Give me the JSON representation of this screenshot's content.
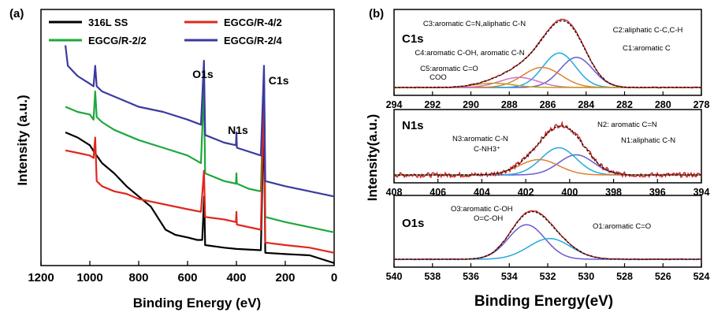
{
  "panel_a_label": "(a)",
  "panel_b_label": "(b)",
  "chart_data": [
    {
      "type": "line",
      "panel": "(a)",
      "xlabel": "Binding Energy (eV)",
      "ylabel": "Intensity (a.u.)",
      "xlim": [
        1200,
        0
      ],
      "x_ticks": [
        "1200",
        "1000",
        "800",
        "600",
        "400",
        "200",
        "0"
      ],
      "peak_labels": [
        {
          "text": "O1s",
          "x": 531
        },
        {
          "text": "N1s",
          "x": 400
        },
        {
          "text": "C1s",
          "x": 285
        }
      ],
      "series": [
        {
          "name": "316L SS",
          "color": "#000000",
          "legend": "top-left",
          "points": [
            [
              1100,
              0.52
            ],
            [
              1050,
              0.5
            ],
            [
              1000,
              0.47
            ],
            [
              980,
              0.44
            ],
            [
              950,
              0.4
            ],
            [
              900,
              0.36
            ],
            [
              850,
              0.31
            ],
            [
              800,
              0.27
            ],
            [
              750,
              0.23
            ],
            [
              710,
              0.17
            ],
            [
              690,
              0.14
            ],
            [
              650,
              0.12
            ],
            [
              600,
              0.11
            ],
            [
              560,
              0.1
            ],
            [
              540,
              0.1
            ],
            [
              532,
              0.27
            ],
            [
              528,
              0.08
            ],
            [
              450,
              0.07
            ],
            [
              400,
              0.065
            ],
            [
              300,
              0.06
            ],
            [
              287,
              0.6
            ],
            [
              282,
              0.05
            ],
            [
              200,
              0.045
            ],
            [
              100,
              0.04
            ],
            [
              0,
              0.01
            ]
          ]
        },
        {
          "name": "EGCG/R-2/2",
          "color": "#1ea83c",
          "legend": "bottom-left",
          "points": [
            [
              1100,
              0.62
            ],
            [
              1050,
              0.6
            ],
            [
              1000,
              0.59
            ],
            [
              985,
              0.57
            ],
            [
              978,
              0.68
            ],
            [
              972,
              0.58
            ],
            [
              950,
              0.56
            ],
            [
              900,
              0.53
            ],
            [
              850,
              0.51
            ],
            [
              800,
              0.49
            ],
            [
              700,
              0.46
            ],
            [
              600,
              0.43
            ],
            [
              545,
              0.4
            ],
            [
              533,
              0.7
            ],
            [
              528,
              0.36
            ],
            [
              450,
              0.33
            ],
            [
              402,
              0.32
            ],
            [
              400,
              0.36
            ],
            [
              398,
              0.32
            ],
            [
              350,
              0.3
            ],
            [
              300,
              0.29
            ],
            [
              287,
              0.74
            ],
            [
              282,
              0.19
            ],
            [
              200,
              0.17
            ],
            [
              100,
              0.15
            ],
            [
              0,
              0.13
            ]
          ]
        },
        {
          "name": "EGCG/R-4/2",
          "color": "#e0281e",
          "legend": "top-right",
          "points": [
            [
              1100,
              0.45
            ],
            [
              1050,
              0.44
            ],
            [
              1000,
              0.43
            ],
            [
              985,
              0.42
            ],
            [
              978,
              0.5
            ],
            [
              972,
              0.33
            ],
            [
              950,
              0.31
            ],
            [
              900,
              0.29
            ],
            [
              850,
              0.28
            ],
            [
              800,
              0.26
            ],
            [
              700,
              0.24
            ],
            [
              600,
              0.22
            ],
            [
              545,
              0.21
            ],
            [
              533,
              0.37
            ],
            [
              528,
              0.19
            ],
            [
              450,
              0.18
            ],
            [
              402,
              0.17
            ],
            [
              400,
              0.21
            ],
            [
              398,
              0.16
            ],
            [
              300,
              0.14
            ],
            [
              287,
              0.71
            ],
            [
              282,
              0.09
            ],
            [
              200,
              0.08
            ],
            [
              100,
              0.07
            ],
            [
              0,
              0.05
            ]
          ]
        },
        {
          "name": "EGCG/R-2/4",
          "color": "#3a3aa0",
          "legend": "bottom-right",
          "points": [
            [
              1100,
              0.86
            ],
            [
              1090,
              0.78
            ],
            [
              1050,
              0.74
            ],
            [
              1000,
              0.71
            ],
            [
              985,
              0.7
            ],
            [
              978,
              0.78
            ],
            [
              972,
              0.7
            ],
            [
              950,
              0.68
            ],
            [
              900,
              0.66
            ],
            [
              850,
              0.64
            ],
            [
              800,
              0.62
            ],
            [
              700,
              0.6
            ],
            [
              600,
              0.57
            ],
            [
              545,
              0.55
            ],
            [
              533,
              0.8
            ],
            [
              528,
              0.51
            ],
            [
              450,
              0.48
            ],
            [
              402,
              0.47
            ],
            [
              400,
              0.52
            ],
            [
              398,
              0.46
            ],
            [
              300,
              0.43
            ],
            [
              287,
              0.78
            ],
            [
              282,
              0.33
            ],
            [
              200,
              0.31
            ],
            [
              100,
              0.29
            ],
            [
              0,
              0.27
            ]
          ]
        }
      ]
    },
    {
      "type": "line",
      "panel": "(b) C1s",
      "region": "C1s",
      "xlim": [
        294,
        278
      ],
      "x_ticks": [
        "294",
        "292",
        "290",
        "288",
        "286",
        "284",
        "282",
        "280",
        "278"
      ],
      "peak_labels": [
        "C3:aromatic C=N,aliphatic C-N",
        "C4:aromatic C-OH, aromatic C-N",
        "C5:aromatic C=O",
        "COO",
        "C2:aliphatic C-C,C-H",
        "C1:aromatic C"
      ],
      "components": [
        {
          "center": 284.5,
          "height": 0.42,
          "width": 0.85
        },
        {
          "center": 285.4,
          "height": 0.48,
          "width": 0.85
        },
        {
          "center": 286.3,
          "height": 0.28,
          "width": 1.0
        },
        {
          "center": 287.5,
          "height": 0.14,
          "width": 1.0
        },
        {
          "center": 288.8,
          "height": 0.06,
          "width": 1.0
        }
      ]
    },
    {
      "type": "line",
      "panel": "(b) N1s",
      "region": "N1s",
      "xlim": [
        408,
        394
      ],
      "x_ticks": [
        "408",
        "406",
        "404",
        "402",
        "400",
        "398",
        "396",
        "394"
      ],
      "peak_labels": [
        "N2: aromatic C=N",
        "N3:aromatic C-N",
        "C-NH3⁺",
        "N1:aliphatic C-N"
      ],
      "components": [
        {
          "center": 399.7,
          "height": 0.34,
          "width": 0.8
        },
        {
          "center": 400.5,
          "height": 0.46,
          "width": 0.8
        },
        {
          "center": 401.4,
          "height": 0.26,
          "width": 0.9
        }
      ]
    },
    {
      "type": "line",
      "panel": "(b) O1s",
      "region": "O1s",
      "xlabel": "Binding Energy(eV)",
      "xlim": [
        540,
        524
      ],
      "x_ticks": [
        "540",
        "538",
        "536",
        "534",
        "532",
        "530",
        "528",
        "526",
        "524"
      ],
      "peak_labels": [
        "O3:aromatic C-OH",
        "O=C-OH",
        "O1:aromatic C=O"
      ],
      "components": [
        {
          "center": 533.1,
          "height": 0.6,
          "width": 0.95
        },
        {
          "center": 531.9,
          "height": 0.36,
          "width": 1.1
        }
      ]
    }
  ],
  "panel_b_ylabel": "Intensity(a.u.)",
  "colors": {
    "envelope": "#cc2222",
    "fit": "#111111",
    "c1": "#6a5acd",
    "c2": "#22aadd",
    "c3": "#e08030",
    "c4": "#d070c8",
    "c5": "#c0a020"
  }
}
